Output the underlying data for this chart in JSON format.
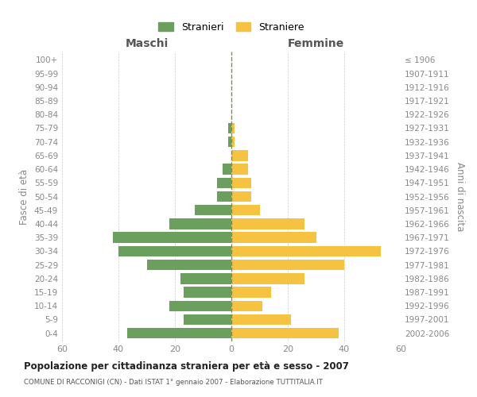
{
  "age_groups": [
    "0-4",
    "5-9",
    "10-14",
    "15-19",
    "20-24",
    "25-29",
    "30-34",
    "35-39",
    "40-44",
    "45-49",
    "50-54",
    "55-59",
    "60-64",
    "65-69",
    "70-74",
    "75-79",
    "80-84",
    "85-89",
    "90-94",
    "95-99",
    "100+"
  ],
  "birth_years": [
    "2002-2006",
    "1997-2001",
    "1992-1996",
    "1987-1991",
    "1982-1986",
    "1977-1981",
    "1972-1976",
    "1967-1971",
    "1962-1966",
    "1957-1961",
    "1952-1956",
    "1947-1951",
    "1942-1946",
    "1937-1941",
    "1932-1936",
    "1927-1931",
    "1922-1926",
    "1917-1921",
    "1912-1916",
    "1907-1911",
    "≤ 1906"
  ],
  "maschi": [
    37,
    17,
    22,
    17,
    18,
    30,
    40,
    42,
    22,
    13,
    5,
    5,
    3,
    0,
    1,
    1,
    0,
    0,
    0,
    0,
    0
  ],
  "femmine": [
    38,
    21,
    11,
    14,
    26,
    40,
    53,
    30,
    26,
    10,
    7,
    7,
    6,
    6,
    1,
    1,
    0,
    0,
    0,
    0,
    0
  ],
  "color_maschi": "#6a9f5e",
  "color_femmine": "#f5c242",
  "title": "Popolazione per cittadinanza straniera per età e sesso - 2007",
  "subtitle": "COMUNE DI RACCONIGI (CN) - Dati ISTAT 1° gennaio 2007 - Elaborazione TUTTITALIA.IT",
  "ylabel_left": "Fasce di età",
  "ylabel_right": "Anni di nascita",
  "xlabel_maschi": "Maschi",
  "xlabel_femmine": "Femmine",
  "legend_maschi": "Stranieri",
  "legend_femmine": "Straniere",
  "xlim": 60,
  "background_color": "#ffffff",
  "grid_color": "#cccccc",
  "tick_color": "#888888"
}
